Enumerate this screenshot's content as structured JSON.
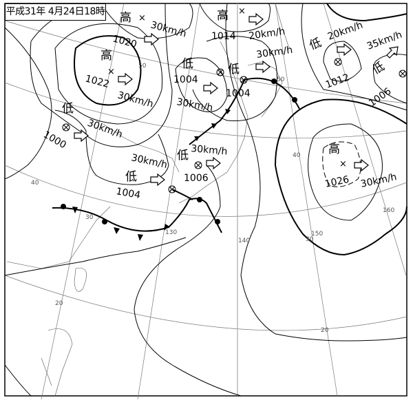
{
  "title": "平成31年 4月24日18時",
  "systems": [
    {
      "type": "high",
      "symbol": "高",
      "pressure": "1020",
      "speed": "30km/h"
    },
    {
      "type": "high",
      "symbol": "高",
      "pressure": "1022",
      "speed": "30km/h"
    },
    {
      "type": "low",
      "symbol": "低",
      "pressure": "1000",
      "speed": "30km/h"
    },
    {
      "type": "low",
      "symbol": "低",
      "pressure": "1004",
      "speed": "30km/h"
    },
    {
      "type": "high",
      "symbol": "高",
      "pressure": "1014",
      "speed": "20km/h"
    },
    {
      "type": "low",
      "symbol": "低",
      "pressure": "1004",
      "speed": "30km/h"
    },
    {
      "type": "low",
      "symbol": "低",
      "pressure": "1012",
      "speed": "20km/h"
    },
    {
      "type": "low",
      "symbol": "低",
      "pressure": "1006",
      "speed": "35km/h"
    },
    {
      "type": "high",
      "symbol": "高",
      "pressure": "1026",
      "speed": "30km/h"
    },
    {
      "type": "low",
      "symbol": "低",
      "pressure": "1006",
      "speed": "30km/h"
    },
    {
      "type": "low",
      "symbol": "低",
      "pressure": "1004",
      "speed": "30km/h"
    }
  ],
  "grid_labels": {
    "lat50a": "50",
    "lat50b": "50",
    "lat40a": "40",
    "lat40b": "40",
    "lat30a": "30",
    "lat30b": "30",
    "lat20a": "20",
    "lat20b": "20",
    "lon130": "130",
    "lon140": "140",
    "lon150": "150",
    "lon160": "160"
  }
}
